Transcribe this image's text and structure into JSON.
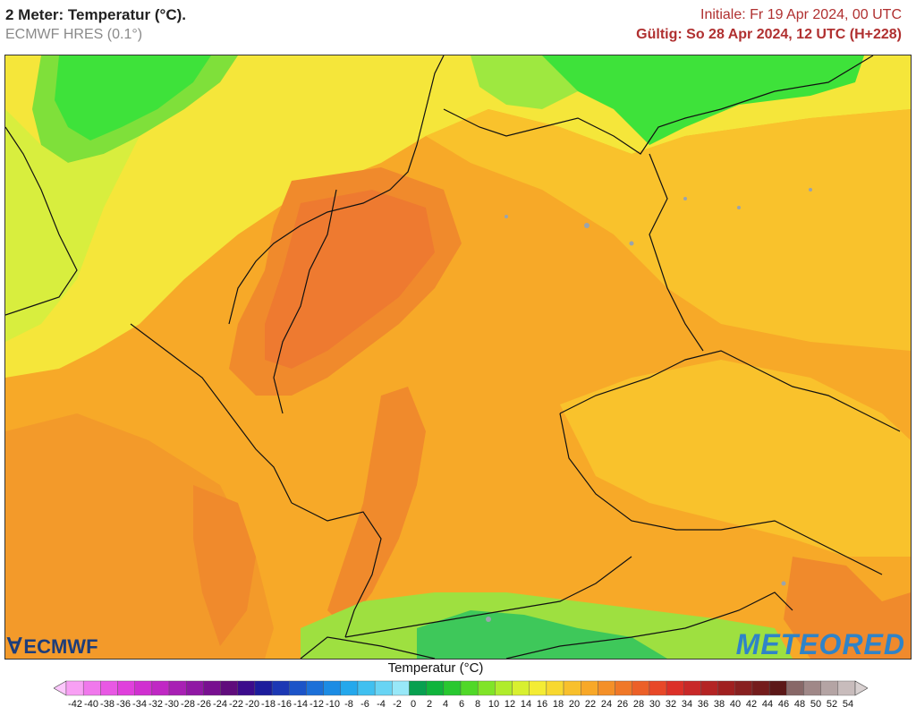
{
  "header": {
    "title": "2 Meter: Temperatur (°C).",
    "subtitle": "ECMWF HRES (0.1°)",
    "init_time": "Initiale: Fr 19 Apr 2024, 00 UTC",
    "valid_time": "Gültig: So 28 Apr 2024, 12 UTC (H+228)"
  },
  "map": {
    "region": "Germany and surroundings",
    "variable": "2 m temperature",
    "colors": {
      "cool_green": "#3ee23a",
      "green_yellow": "#c8f03c",
      "yellow": "#f5e63a",
      "light_orange": "#f9c22c",
      "orange": "#f7a928",
      "dark_orange": "#f28b2c",
      "red_orange": "#ee7030",
      "alps_green": "#39c85a"
    }
  },
  "logos": {
    "ecmwf": "ECMWF",
    "meteored": "METEORED"
  },
  "legend": {
    "title": "Temperatur (°C)",
    "ticks": [
      "-42",
      "-40",
      "-38",
      "-36",
      "-34",
      "-32",
      "-30",
      "-28",
      "-26",
      "-24",
      "-22",
      "-20",
      "-18",
      "-16",
      "-14",
      "-12",
      "-10",
      "-8",
      "-6",
      "-4",
      "-2",
      "0",
      "2",
      "4",
      "6",
      "8",
      "10",
      "12",
      "14",
      "16",
      "18",
      "20",
      "22",
      "24",
      "26",
      "28",
      "30",
      "32",
      "34",
      "36",
      "38",
      "40",
      "42",
      "44",
      "46",
      "48",
      "50",
      "52",
      "54"
    ],
    "colors": [
      "#fcc8fc",
      "#f8a0f4",
      "#f078ec",
      "#e858e4",
      "#e040dc",
      "#d030d0",
      "#c028c4",
      "#a820b4",
      "#9018a4",
      "#781090",
      "#600c7c",
      "#3c0c8c",
      "#1c1c9c",
      "#1c38b4",
      "#1c54c8",
      "#1c70d8",
      "#1c8ce4",
      "#24a8ec",
      "#40c0f0",
      "#68d4f4",
      "#98e8f8",
      "#08a050",
      "#10b43c",
      "#28c830",
      "#50d828",
      "#80e428",
      "#b0ec2c",
      "#d8f030",
      "#f4ec34",
      "#f8d830",
      "#f8c02c",
      "#f8a828",
      "#f49028",
      "#f07828",
      "#ec6028",
      "#e84828",
      "#dc3028",
      "#c82828",
      "#b42424",
      "#a02020",
      "#882020",
      "#741c1c",
      "#5c1818",
      "#886868",
      "#a08888",
      "#b4a4a4",
      "#c8bcbc",
      "#d8d0d0"
    ]
  }
}
